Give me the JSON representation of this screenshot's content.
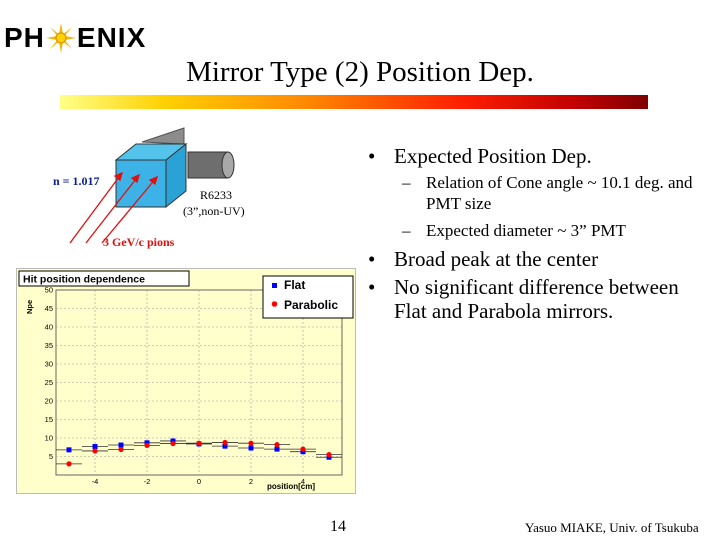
{
  "logo": {
    "prefix": "PH",
    "suffix": "ENIX"
  },
  "title": "Mirror Type (2) Position Dep.",
  "diagram": {
    "index_label": "n = 1.017",
    "pmt_name": "R6233",
    "pmt_desc": "(3”,non-UV)",
    "beam_label": "3 GeV/c pions"
  },
  "bullets": [
    {
      "text": "Expected Position Dep.",
      "sub": [
        "Relation of  Cone angle ~ 10.1 deg. and PMT size",
        "Expected diameter ~ 3” PMT"
      ]
    },
    {
      "text": "Broad peak at the center",
      "sub": []
    },
    {
      "text": "No significant difference between Flat and Parabola mirrors.",
      "sub": []
    }
  ],
  "page_number": "14",
  "author": "Yasuo MIAKE, Univ. of Tsukuba",
  "colors": {
    "flat": "#0000ff",
    "parabolic": "#ff0000",
    "frame_bg": "#ffffcc"
  },
  "chart_data": {
    "type": "scatter",
    "title": "Hit position dependence",
    "xlabel": "position[cm]",
    "ylabel": "Npe",
    "xlim": [
      -5.5,
      5.5
    ],
    "ylim": [
      0,
      50
    ],
    "xticks": [
      -4,
      -2,
      0,
      2,
      4
    ],
    "yticks": [
      5,
      10,
      15,
      20,
      25,
      30,
      35,
      40,
      45,
      50
    ],
    "grid": true,
    "legend_position": "top-right",
    "series": [
      {
        "name": "Flat",
        "marker": "square",
        "color": "#0000ff",
        "x": [
          -5,
          -4,
          -3,
          -2,
          -1,
          0,
          1,
          2,
          3,
          4,
          5
        ],
        "y": [
          6.8,
          7.7,
          8.1,
          8.7,
          9.2,
          8.4,
          7.8,
          7.3,
          7.0,
          6.3,
          4.8
        ]
      },
      {
        "name": "Parabolic",
        "marker": "circle",
        "color": "#ff0000",
        "x": [
          -5,
          -4,
          -3,
          -2,
          -1,
          0,
          1,
          2,
          3,
          4,
          5
        ],
        "y": [
          3.0,
          6.5,
          6.9,
          8.0,
          8.5,
          8.6,
          8.8,
          8.6,
          8.2,
          7.0,
          5.5
        ]
      }
    ]
  }
}
